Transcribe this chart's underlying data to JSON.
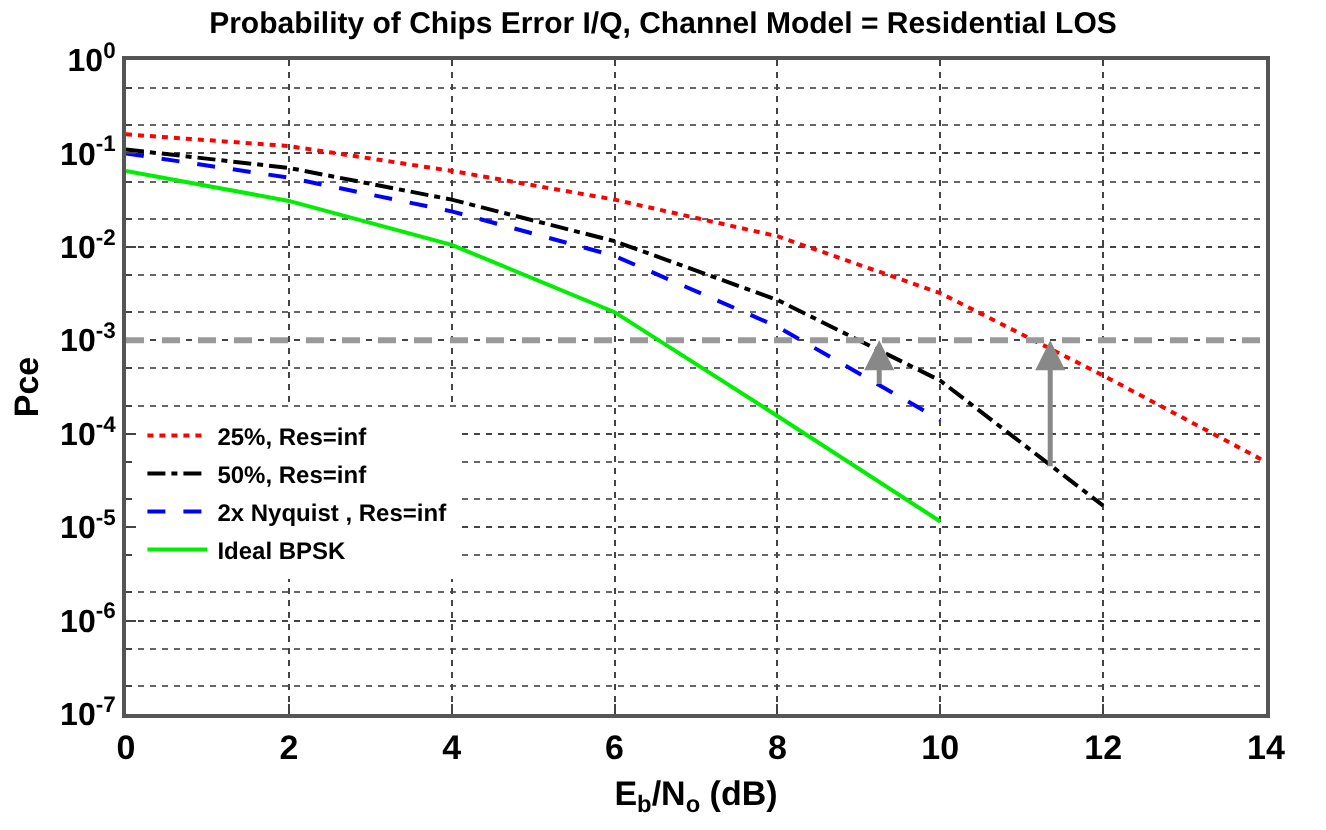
{
  "chart_data": {
    "type": "line",
    "title": "Probability of Chips Error I/Q, Channel Model = Residential LOS",
    "xlabel": "E$_{b}$/N$_{o}$ (dB)",
    "ylabel": "Pce",
    "x": [
      0,
      2,
      4,
      6,
      8,
      10,
      12,
      14
    ],
    "series": [
      {
        "name": "25%, Res=inf",
        "color": "#ff0000",
        "line_style": "dotted",
        "values": [
          0.16,
          0.12,
          0.065,
          0.032,
          0.013,
          0.0032,
          0.00042,
          5e-05
        ]
      },
      {
        "name": "50%, Res=inf",
        "color": "#000000",
        "line_style": "dashdot",
        "values": [
          0.11,
          0.07,
          0.032,
          0.0115,
          0.0027,
          0.00037,
          1.7e-05,
          null
        ]
      },
      {
        "name": "2x Nyquist , Res=inf",
        "color": "#0000ff",
        "line_style": "dashed",
        "values": [
          0.1,
          0.055,
          0.024,
          0.008,
          0.0014,
          0.00014,
          null,
          null
        ]
      },
      {
        "name": "Ideal BPSK",
        "color": "#00ee00",
        "line_style": "solid",
        "values": [
          0.065,
          0.031,
          0.0105,
          0.002,
          0.000155,
          1.15e-05,
          null,
          null
        ]
      }
    ],
    "log": "y",
    "xlim": [
      0,
      14
    ],
    "xticks": [
      0,
      2,
      4,
      6,
      8,
      10,
      12,
      14
    ],
    "ylim": [
      1e-07,
      1
    ],
    "yticks": [
      {
        "value": 1e-07,
        "label": "10$^{-7}$"
      },
      {
        "value": 1e-06,
        "label": "10$^{-6}$"
      },
      {
        "value": 1e-05,
        "label": "10$^{-5}$"
      },
      {
        "value": 0.0001,
        "label": "10$^{-4}$"
      },
      {
        "value": 0.001,
        "label": "10$^{-3}$"
      },
      {
        "value": 0.01,
        "label": "10$^{-2}$"
      },
      {
        "value": 0.1,
        "label": "10$^{-1}$"
      },
      {
        "value": 1,
        "label": "10$^{0}$"
      }
    ],
    "ref_lines": [
      {
        "axis": "y",
        "value": 0.001,
        "color": "#999999",
        "line_style": "dashed"
      }
    ],
    "grid": true,
    "legend": "left",
    "marker": "none"
  }
}
